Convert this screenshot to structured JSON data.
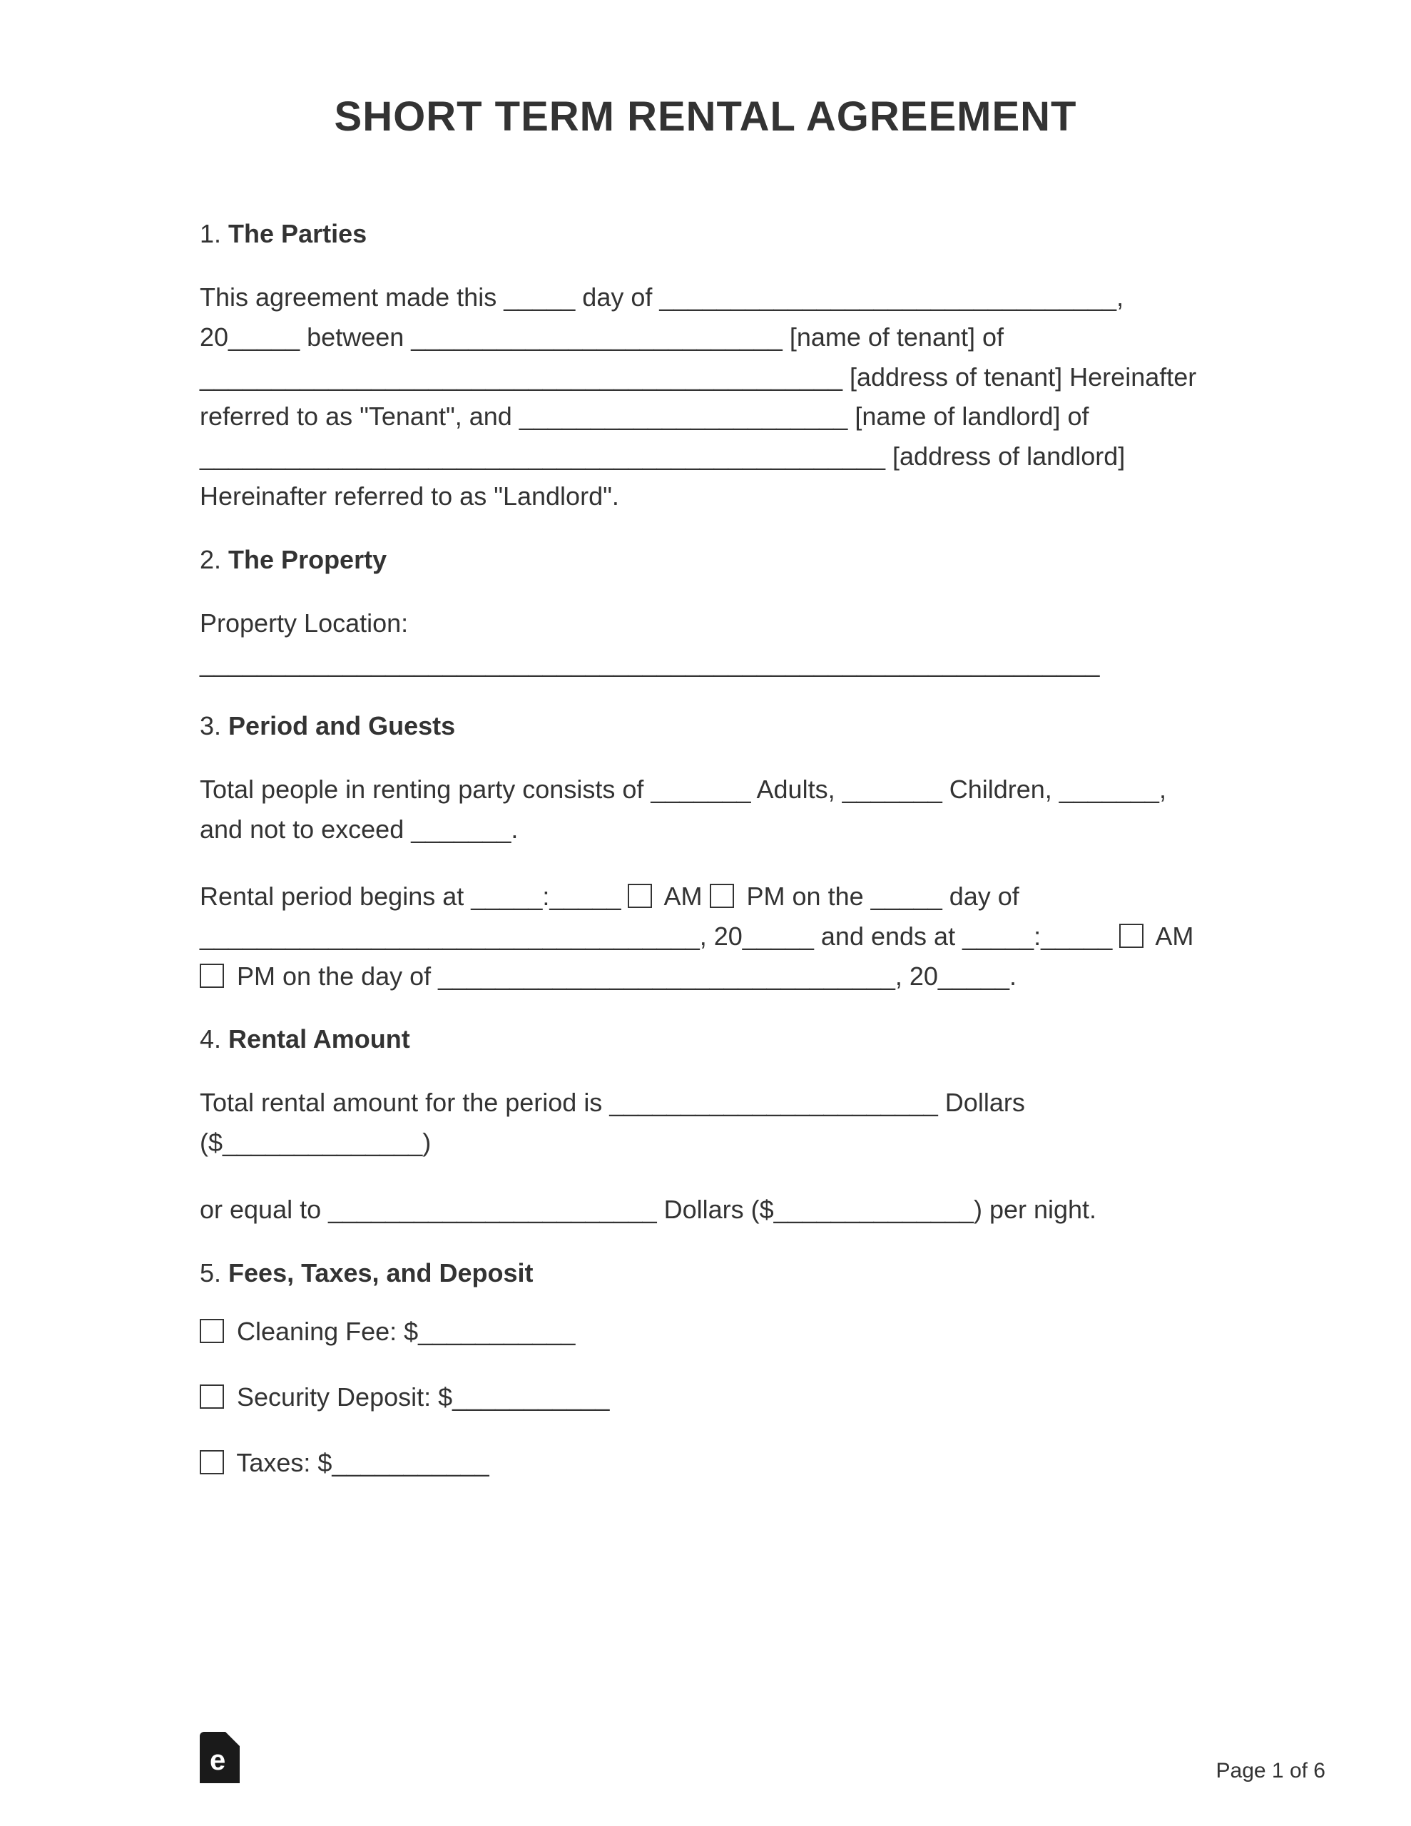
{
  "title": "SHORT TERM RENTAL AGREEMENT",
  "sections": {
    "s1": {
      "num": "1.",
      "name": "The Parties"
    },
    "s2": {
      "num": "2.",
      "name": "The Property"
    },
    "s3": {
      "num": "3.",
      "name": "Period and Guests"
    },
    "s4": {
      "num": "4.",
      "name": "Rental Amount"
    },
    "s5": {
      "num": "5.",
      "name": "Fees, Taxes, and Deposit"
    }
  },
  "parties_text": "This agreement made this _____ day of ________________________________, 20_____ between __________________________ [name of tenant] of _____________________________________________ [address of tenant] Hereinafter referred to as \"Tenant\", and _______________________ [name of landlord] of ________________________________________________ [address of landlord] Hereinafter referred to as \"Landlord\".",
  "property_label": "Property Location:",
  "property_line": "_______________________________________________________________",
  "guests_p1": "Total people in renting party consists of _______ Adults, _______ Children, _______, and not to exceed _______.",
  "guests_p2a": "Rental period begins at _____:_____ ",
  "guests_am1": " AM ",
  "guests_pm1": " PM on the _____ day of ___________________________________, 20_____ and ends at _____:_____ ",
  "guests_am2": " AM ",
  "guests_pm2": " PM on the day of ________________________________, 20_____.",
  "amount_p1": "Total rental amount for the period is _______________________ Dollars ($______________)",
  "amount_p2": "or equal to _______________________ Dollars ($______________) per night.",
  "fees": {
    "cleaning": " Cleaning Fee: $___________",
    "deposit": " Security Deposit: $___________",
    "taxes": " Taxes: $___________"
  },
  "page_label": "Page 1 of 6",
  "colors": {
    "text": "#333333",
    "bg": "#ffffff",
    "border": "#333333"
  },
  "fonts": {
    "title_size": 58,
    "body_size": 36,
    "page_num_size": 30
  }
}
